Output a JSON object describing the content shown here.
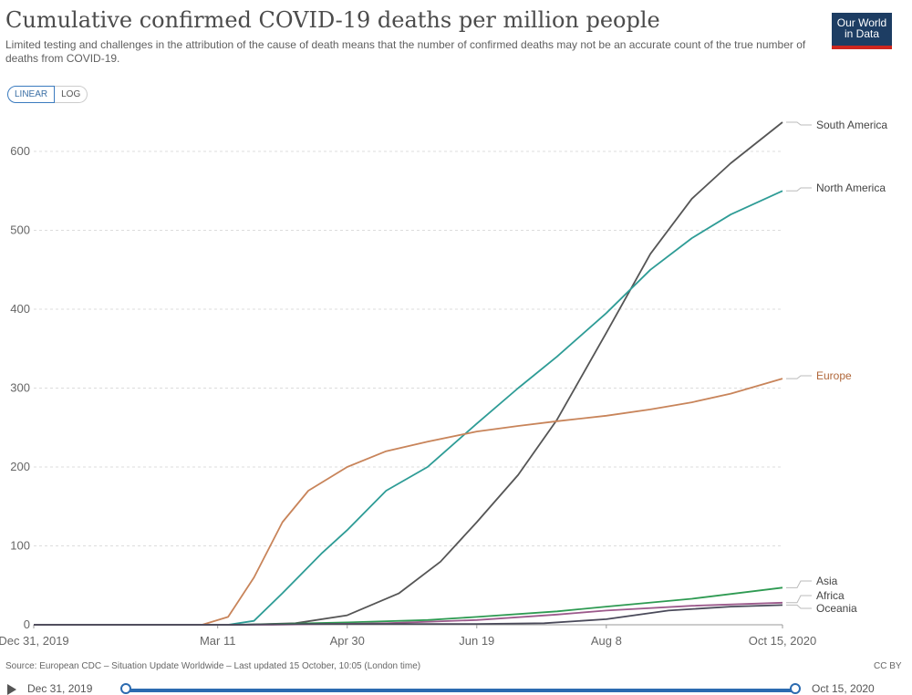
{
  "header": {
    "title": "Cumulative confirmed COVID-19 deaths per million people",
    "subtitle": "Limited testing and challenges in the attribution of the cause of death means that the number of confirmed deaths may not be an accurate count of the true number of deaths from COVID-19.",
    "logo_line1": "Our World",
    "logo_line2": "in Data"
  },
  "scale_toggle": {
    "linear": "LINEAR",
    "log": "LOG",
    "selected": "LINEAR"
  },
  "footer": {
    "source": "Source: European CDC – Situation Update Worldwide – Last updated 15 October, 10:05 (London time)",
    "license": "CC BY"
  },
  "timeline": {
    "start_label": "Dec 31, 2019",
    "end_label": "Oct 15, 2020"
  },
  "colors": {
    "South America": "#555555",
    "North America": "#2e9c96",
    "Europe": "#c8845a",
    "Asia": "#2e9a52",
    "Africa": "#9c5a8c",
    "Oceania": "#4a4a5a",
    "grid": "#dcdcdc"
  },
  "chart_data": {
    "type": "line",
    "title": "Cumulative confirmed COVID-19 deaths per million people",
    "xlabel": "",
    "ylabel": "",
    "ylim": [
      0,
      640
    ],
    "yticks": [
      0,
      100,
      200,
      300,
      400,
      500,
      600
    ],
    "xlim": [
      "2019-12-31",
      "2020-10-15"
    ],
    "xticks": [
      {
        "date": "2019-12-31",
        "label": "Dec 31, 2019"
      },
      {
        "date": "2020-03-11",
        "label": "Mar 11"
      },
      {
        "date": "2020-04-30",
        "label": "Apr 30"
      },
      {
        "date": "2020-06-19",
        "label": "Jun 19"
      },
      {
        "date": "2020-08-08",
        "label": "Aug 8"
      },
      {
        "date": "2020-10-15",
        "label": "Oct 15, 2020"
      }
    ],
    "grid": "horizontal dashed",
    "legend": "line end labels on right",
    "series": [
      {
        "name": "South America",
        "points": [
          [
            "2019-12-31",
            0
          ],
          [
            "2020-03-20",
            0
          ],
          [
            "2020-04-10",
            2
          ],
          [
            "2020-04-30",
            12
          ],
          [
            "2020-05-20",
            40
          ],
          [
            "2020-06-05",
            80
          ],
          [
            "2020-06-19",
            130
          ],
          [
            "2020-07-05",
            190
          ],
          [
            "2020-07-20",
            260
          ],
          [
            "2020-08-08",
            370
          ],
          [
            "2020-08-25",
            470
          ],
          [
            "2020-09-10",
            540
          ],
          [
            "2020-09-25",
            585
          ],
          [
            "2020-10-15",
            637
          ]
        ]
      },
      {
        "name": "North America",
        "points": [
          [
            "2019-12-31",
            0
          ],
          [
            "2020-03-15",
            0
          ],
          [
            "2020-03-25",
            5
          ],
          [
            "2020-04-05",
            40
          ],
          [
            "2020-04-20",
            90
          ],
          [
            "2020-04-30",
            120
          ],
          [
            "2020-05-15",
            170
          ],
          [
            "2020-05-31",
            200
          ],
          [
            "2020-06-19",
            255
          ],
          [
            "2020-07-05",
            300
          ],
          [
            "2020-07-20",
            340
          ],
          [
            "2020-08-08",
            395
          ],
          [
            "2020-08-25",
            450
          ],
          [
            "2020-09-10",
            490
          ],
          [
            "2020-09-25",
            520
          ],
          [
            "2020-10-15",
            550
          ]
        ]
      },
      {
        "name": "Europe",
        "points": [
          [
            "2019-12-31",
            0
          ],
          [
            "2020-03-05",
            0
          ],
          [
            "2020-03-15",
            10
          ],
          [
            "2020-03-25",
            60
          ],
          [
            "2020-04-05",
            130
          ],
          [
            "2020-04-15",
            170
          ],
          [
            "2020-04-30",
            200
          ],
          [
            "2020-05-15",
            220
          ],
          [
            "2020-05-31",
            232
          ],
          [
            "2020-06-19",
            245
          ],
          [
            "2020-07-05",
            252
          ],
          [
            "2020-07-20",
            258
          ],
          [
            "2020-08-08",
            265
          ],
          [
            "2020-08-25",
            273
          ],
          [
            "2020-09-10",
            282
          ],
          [
            "2020-09-25",
            293
          ],
          [
            "2020-10-15",
            312
          ]
        ]
      },
      {
        "name": "Asia",
        "points": [
          [
            "2019-12-31",
            0
          ],
          [
            "2020-03-20",
            0
          ],
          [
            "2020-04-30",
            3
          ],
          [
            "2020-05-31",
            6
          ],
          [
            "2020-06-19",
            10
          ],
          [
            "2020-07-20",
            17
          ],
          [
            "2020-08-08",
            23
          ],
          [
            "2020-09-10",
            33
          ],
          [
            "2020-10-15",
            47
          ]
        ]
      },
      {
        "name": "Africa",
        "points": [
          [
            "2019-12-31",
            0
          ],
          [
            "2020-04-01",
            0
          ],
          [
            "2020-05-15",
            2
          ],
          [
            "2020-06-19",
            6
          ],
          [
            "2020-07-20",
            13
          ],
          [
            "2020-08-08",
            18
          ],
          [
            "2020-09-10",
            24
          ],
          [
            "2020-10-15",
            28
          ]
        ]
      },
      {
        "name": "Oceania",
        "points": [
          [
            "2019-12-31",
            0
          ],
          [
            "2020-03-15",
            0
          ],
          [
            "2020-04-15",
            1
          ],
          [
            "2020-06-19",
            1
          ],
          [
            "2020-07-15",
            2
          ],
          [
            "2020-08-08",
            7
          ],
          [
            "2020-09-01",
            18
          ],
          [
            "2020-09-25",
            23
          ],
          [
            "2020-10-15",
            25
          ]
        ]
      }
    ]
  }
}
